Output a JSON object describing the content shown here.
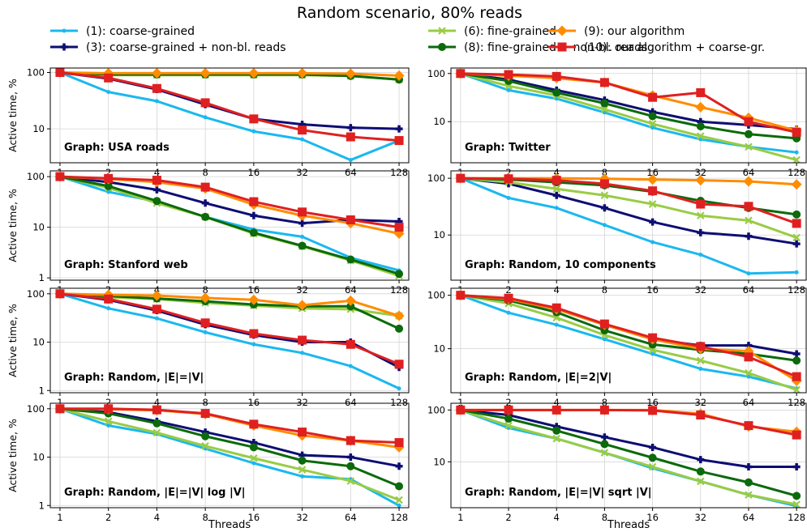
{
  "figure": {
    "title": "Random scenario, 80% reads",
    "xlabel": "Threads",
    "ylabel": "Active time, %"
  },
  "series_styles": [
    {
      "key": "s1",
      "name": "(1): coarse-grained",
      "color": "#1ab8ef",
      "marker": "circle",
      "lw": 3,
      "ms": 5
    },
    {
      "key": "s3",
      "name": "(3): coarse-grained + non-bl. reads",
      "color": "#0e0d73",
      "marker": "plus",
      "lw": 3,
      "ms": 9
    },
    {
      "key": "s6",
      "name": "(6): fine-grained",
      "color": "#99cc44",
      "marker": "x",
      "lw": 3,
      "ms": 8
    },
    {
      "key": "s8",
      "name": "(8): fine-grained + non-bl. reads",
      "color": "#0b6a0b",
      "marker": "circle",
      "lw": 3,
      "ms": 10
    },
    {
      "key": "s9",
      "name": "(9): our algorithm",
      "color": "#ff8c00",
      "marker": "diamond",
      "lw": 3,
      "ms": 13
    },
    {
      "key": "s10",
      "name": "(10): our algorithm + coarse-gr.",
      "color": "#e02020",
      "marker": "square",
      "lw": 3,
      "ms": 11
    }
  ],
  "chart_data": [
    {
      "type": "line",
      "label": "Graph: USA roads",
      "x": [
        1,
        2,
        4,
        8,
        16,
        32,
        64,
        128
      ],
      "yscale": "log",
      "ylim": [
        2.5,
        120
      ],
      "yticks": [
        10,
        100
      ],
      "series": [
        {
          "name": "(1): coarse-grained",
          "values": [
            100,
            45,
            31,
            16,
            9,
            6.5,
            2.8,
            6.2
          ]
        },
        {
          "name": "(3): coarse-grained + non-bl. reads",
          "values": [
            100,
            78,
            50,
            27,
            15,
            12,
            10.5,
            10
          ]
        },
        {
          "name": "(6): fine-grained",
          "values": [
            100,
            90,
            90,
            90,
            90,
            90,
            87,
            75
          ]
        },
        {
          "name": "(8): fine-grained + non-bl. reads",
          "values": [
            100,
            92,
            92,
            92,
            92,
            92,
            87,
            75
          ]
        },
        {
          "name": "(9): our algorithm",
          "values": [
            100,
            97,
            97,
            97,
            97,
            97,
            95,
            88
          ]
        },
        {
          "name": "(10): our algorithm + coarse-gr.",
          "values": [
            100,
            80,
            52,
            29,
            15,
            9.5,
            7.2,
            6.2
          ]
        }
      ]
    },
    {
      "type": "line",
      "label": "Graph: Twitter",
      "x": [
        1,
        2,
        4,
        8,
        16,
        32,
        64,
        128
      ],
      "yscale": "log",
      "ylim": [
        1.4,
        130
      ],
      "yticks": [
        10,
        100
      ],
      "series": [
        {
          "name": "(1): coarse-grained",
          "values": [
            100,
            45,
            30,
            15.5,
            7.5,
            4.3,
            3,
            2.3
          ]
        },
        {
          "name": "(3): coarse-grained + non-bl. reads",
          "values": [
            100,
            75,
            45,
            28,
            16,
            10,
            8.5,
            7
          ]
        },
        {
          "name": "(6): fine-grained",
          "values": [
            100,
            55,
            35,
            18,
            9,
            5,
            3,
            1.6
          ]
        },
        {
          "name": "(8): fine-grained + non-bl. reads",
          "values": [
            100,
            70,
            40,
            24,
            13,
            8,
            5.5,
            4.5
          ]
        },
        {
          "name": "(9): our algorithm",
          "values": [
            100,
            90,
            80,
            65,
            35,
            20,
            12,
            6.5
          ]
        },
        {
          "name": "(10): our algorithm + coarse-gr.",
          "values": [
            100,
            95,
            87,
            65,
            32,
            40,
            10,
            6
          ]
        }
      ]
    },
    {
      "type": "line",
      "label": "Graph: Stanford web",
      "x": [
        1,
        2,
        4,
        8,
        16,
        32,
        64,
        128
      ],
      "yscale": "log",
      "ylim": [
        0.9,
        130
      ],
      "yticks": [
        1,
        10,
        100
      ],
      "series": [
        {
          "name": "(1): coarse-grained",
          "values": [
            100,
            50,
            32,
            16,
            9,
            6.5,
            2.5,
            1.4
          ]
        },
        {
          "name": "(3): coarse-grained + non-bl. reads",
          "values": [
            100,
            78,
            55,
            30,
            17,
            12,
            14,
            13
          ]
        },
        {
          "name": "(6): fine-grained",
          "values": [
            100,
            60,
            30,
            16,
            7.5,
            4.2,
            2.2,
            1.1
          ]
        },
        {
          "name": "(8): fine-grained + non-bl. reads",
          "values": [
            100,
            65,
            33,
            16,
            7.8,
            4.3,
            2.3,
            1.2
          ]
        },
        {
          "name": "(9): our algorithm",
          "values": [
            100,
            90,
            78,
            58,
            28,
            17,
            12,
            7.5
          ]
        },
        {
          "name": "(10): our algorithm + coarse-gr.",
          "values": [
            100,
            92,
            85,
            62,
            32,
            20,
            14,
            10
          ]
        }
      ]
    },
    {
      "type": "line",
      "label": "Graph: Random, 10 components",
      "x": [
        1,
        2,
        4,
        8,
        16,
        32,
        64,
        128
      ],
      "yscale": "log",
      "ylim": [
        1.6,
        135
      ],
      "yticks": [
        10,
        100
      ],
      "series": [
        {
          "name": "(1): coarse-grained",
          "values": [
            100,
            45,
            30,
            15,
            7.5,
            4.5,
            2.1,
            2.2
          ]
        },
        {
          "name": "(3): coarse-grained + non-bl. reads",
          "values": [
            100,
            80,
            50,
            30,
            17,
            11,
            9.5,
            7
          ]
        },
        {
          "name": "(6): fine-grained",
          "values": [
            100,
            85,
            65,
            50,
            35,
            22,
            18,
            9
          ]
        },
        {
          "name": "(8): fine-grained + non-bl. reads",
          "values": [
            100,
            95,
            85,
            75,
            58,
            40,
            30,
            23
          ]
        },
        {
          "name": "(9): our algorithm",
          "values": [
            100,
            100,
            100,
            98,
            95,
            92,
            88,
            78
          ]
        },
        {
          "name": "(10): our algorithm + coarse-gr.",
          "values": [
            100,
            98,
            92,
            80,
            60,
            35,
            32,
            16
          ]
        }
      ]
    },
    {
      "type": "line",
      "label": "Graph: Random, |E|=|V|",
      "x": [
        1,
        2,
        4,
        8,
        16,
        32,
        64,
        128
      ],
      "yscale": "log",
      "ylim": [
        0.9,
        130
      ],
      "yticks": [
        1,
        10,
        100
      ],
      "series": [
        {
          "name": "(1): coarse-grained",
          "values": [
            100,
            50,
            31,
            16,
            9,
            6,
            3.2,
            1.1
          ]
        },
        {
          "name": "(3): coarse-grained + non-bl. reads",
          "values": [
            100,
            75,
            45,
            23,
            14,
            10,
            10,
            3
          ]
        },
        {
          "name": "(6): fine-grained",
          "values": [
            100,
            85,
            78,
            65,
            57,
            50,
            48,
            35
          ]
        },
        {
          "name": "(8): fine-grained + non-bl. reads",
          "values": [
            100,
            90,
            80,
            70,
            60,
            55,
            55,
            19
          ]
        },
        {
          "name": "(9): our algorithm",
          "values": [
            100,
            95,
            92,
            82,
            75,
            58,
            72,
            35
          ]
        },
        {
          "name": "(10): our algorithm + coarse-gr.",
          "values": [
            100,
            78,
            48,
            25,
            15,
            11,
            9,
            3.5
          ]
        }
      ]
    },
    {
      "type": "line",
      "label": "Graph: Random, |E|=2|V|",
      "x": [
        1,
        2,
        4,
        8,
        16,
        32,
        64,
        128
      ],
      "yscale": "log",
      "ylim": [
        1.5,
        135
      ],
      "yticks": [
        10,
        100
      ],
      "series": [
        {
          "name": "(1): coarse-grained",
          "values": [
            100,
            47,
            28,
            15,
            8,
            4.2,
            3,
            1.8
          ]
        },
        {
          "name": "(3): coarse-grained + non-bl. reads",
          "values": [
            100,
            85,
            55,
            28,
            15,
            11.5,
            11.5,
            8
          ]
        },
        {
          "name": "(6): fine-grained",
          "values": [
            100,
            70,
            38,
            18,
            9.5,
            6,
            3.5,
            1.7
          ]
        },
        {
          "name": "(8): fine-grained + non-bl. reads",
          "values": [
            100,
            80,
            48,
            22,
            12,
            9.5,
            8,
            6
          ]
        },
        {
          "name": "(9): our algorithm",
          "values": [
            100,
            85,
            55,
            28,
            15,
            10,
            9,
            2.5
          ]
        },
        {
          "name": "(10): our algorithm + coarse-gr.",
          "values": [
            100,
            88,
            58,
            29,
            16,
            11,
            7,
            3
          ]
        }
      ]
    },
    {
      "type": "line",
      "label": "Graph: Random, |E|=|V| log |V|",
      "x": [
        1,
        2,
        4,
        8,
        16,
        32,
        64,
        128
      ],
      "yscale": "log",
      "ylim": [
        0.9,
        130
      ],
      "yticks": [
        1,
        10,
        100
      ],
      "series": [
        {
          "name": "(1): coarse-grained",
          "values": [
            100,
            45,
            30,
            15,
            7.5,
            4,
            3.5,
            1
          ]
        },
        {
          "name": "(3): coarse-grained + non-bl. reads",
          "values": [
            100,
            85,
            55,
            33,
            20,
            11,
            10,
            6.5
          ]
        },
        {
          "name": "(6): fine-grained",
          "values": [
            100,
            55,
            32,
            17,
            9.5,
            5.5,
            3.2,
            1.3
          ]
        },
        {
          "name": "(8): fine-grained + non-bl. reads",
          "values": [
            100,
            80,
            50,
            27,
            16,
            8.5,
            6.5,
            2.5
          ]
        },
        {
          "name": "(9): our algorithm",
          "values": [
            100,
            98,
            93,
            78,
            45,
            28,
            22,
            16
          ]
        },
        {
          "name": "(10): our algorithm + coarse-gr.",
          "values": [
            100,
            100,
            95,
            80,
            48,
            33,
            22,
            20
          ]
        }
      ]
    },
    {
      "type": "line",
      "label": "Graph: Random, |E|=|V| sqrt |V|",
      "x": [
        1,
        2,
        4,
        8,
        16,
        32,
        64,
        128
      ],
      "yscale": "log",
      "ylim": [
        1.3,
        135
      ],
      "yticks": [
        10,
        100
      ],
      "series": [
        {
          "name": "(1): coarse-grained",
          "values": [
            100,
            45,
            28,
            15,
            7.5,
            4.2,
            2.3,
            1.4
          ]
        },
        {
          "name": "(3): coarse-grained + non-bl. reads",
          "values": [
            100,
            80,
            48,
            30,
            19,
            11,
            8,
            8
          ]
        },
        {
          "name": "(6): fine-grained",
          "values": [
            100,
            50,
            28,
            15,
            8,
            4.2,
            2.3,
            1.5
          ]
        },
        {
          "name": "(8): fine-grained + non-bl. reads",
          "values": [
            100,
            68,
            40,
            22,
            12,
            6.5,
            4,
            2.2
          ]
        },
        {
          "name": "(9): our algorithm",
          "values": [
            100,
            100,
            100,
            100,
            100,
            85,
            48,
            38
          ]
        },
        {
          "name": "(10): our algorithm + coarse-gr.",
          "values": [
            100,
            100,
            100,
            100,
            98,
            80,
            50,
            33
          ]
        }
      ]
    }
  ]
}
